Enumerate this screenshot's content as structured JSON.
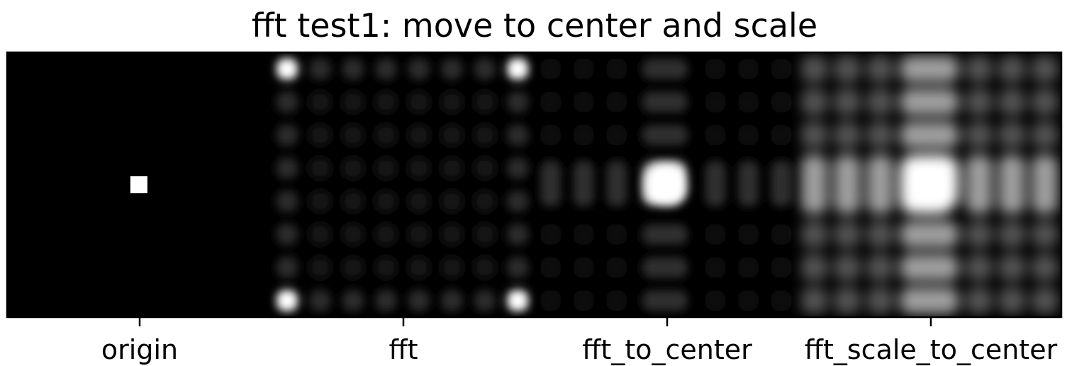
{
  "chart_data": {
    "type": "heatmap",
    "title": "fft test1: move to center and scale",
    "xlabel": "",
    "ylabel": "",
    "colormap": "gray",
    "grid": false,
    "legend": "none",
    "categories": [
      "origin",
      "fft",
      "fft_to_center",
      "fft_scale_to_center"
    ],
    "panels": [
      {
        "name": "origin",
        "description_values": {
          "background": 0.0,
          "spot_row": 0.5,
          "spot_col": 0.5,
          "spot_value": 1.0
        }
      },
      {
        "name": "fft",
        "peak_locations": [
          "top-left",
          "top-right",
          "bottom-left",
          "bottom-right"
        ],
        "grid_cells": 8
      },
      {
        "name": "fft_to_center",
        "peak_location": "center",
        "grid_cells": 8
      },
      {
        "name": "fft_scale_to_center",
        "peak_location": "center",
        "grid_cells": 8,
        "scaling": "log"
      }
    ]
  },
  "colors": {
    "background": "#ffffff",
    "axes": "#000000",
    "image_min": "#000000",
    "image_max": "#ffffff"
  }
}
